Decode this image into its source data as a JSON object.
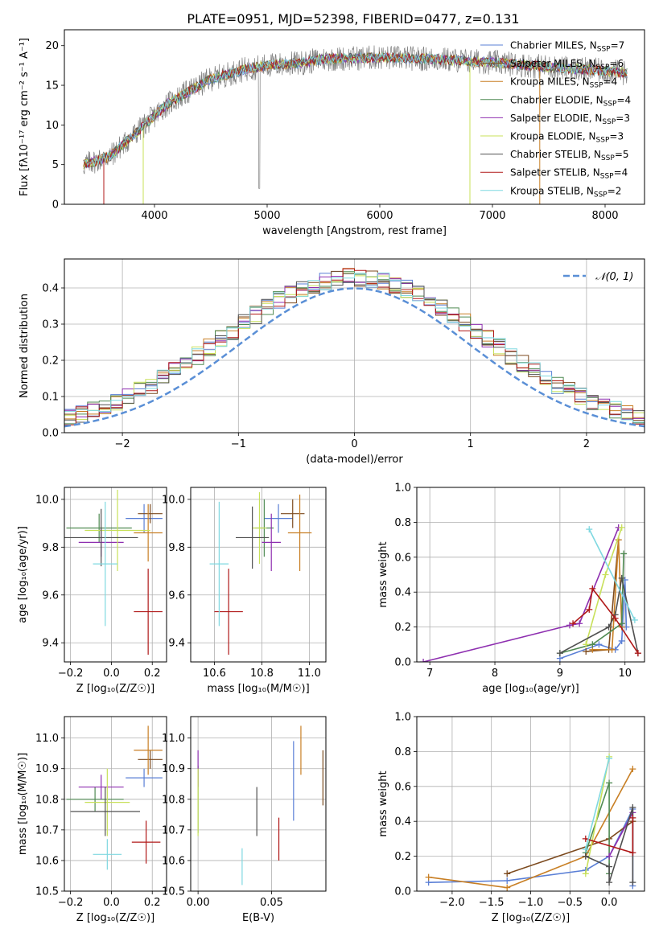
{
  "figure": {
    "title": "PLATE=0951, MJD=52398, FIBERID=0477, z=0.131"
  },
  "series_names": [
    "Chabrier MILES, N_SSP=7",
    "Salpeter MILES, N_SSP=6",
    "Kroupa MILES, N_SSP=4",
    "Chabrier ELODIE, N_SSP=4",
    "Salpeter ELODIE, N_SSP=3",
    "Kroupa ELODIE, N_SSP=3",
    "Chabrier STELIB, N_SSP=5",
    "Salpeter STELIB, N_SSP=4",
    "Kroupa STELIB, N_SSP=2"
  ],
  "colors": [
    "#5a7fd6",
    "#7c4a1e",
    "#c87f24",
    "#4f8a52",
    "#8e2fb0",
    "#c8e05a",
    "#505050",
    "#b01818",
    "#7fd8e0"
  ],
  "chart_data": [
    {
      "type": "line",
      "panel": "spectrum",
      "xlabel": "wavelength [Angstrom, rest frame]",
      "ylabel": "Flux [fλ10⁻¹⁷ erg cm⁻² s⁻¹ A⁻¹]",
      "xlim": [
        3200,
        8350
      ],
      "ylim": [
        0,
        22
      ],
      "xticks": [
        4000,
        5000,
        6000,
        7000,
        8000
      ],
      "yticks": [
        0,
        5,
        10,
        15,
        20
      ],
      "legend_position": "upper right",
      "legend_labels": [
        "Chabrier MILES, N_SSP=7",
        "Salpeter MILES, N_SSP=6",
        "Kroupa MILES, N_SSP=4",
        "Chabrier ELODIE, N_SSP=4",
        "Salpeter ELODIE, N_SSP=3",
        "Kroupa ELODIE, N_SSP=3",
        "Chabrier STELIB, N_SSP=5",
        "Salpeter STELIB, N_SSP=4",
        "Kroupa STELIB, N_SSP=2"
      ],
      "continuum_x": [
        3370,
        3600,
        3800,
        3950,
        4100,
        4300,
        4500,
        4800,
        5000,
        5300,
        5500,
        6000,
        6500,
        7000,
        7500,
        8000,
        8200
      ],
      "continuum_y": [
        5.0,
        6.0,
        8.5,
        10.5,
        12.5,
        14.2,
        15.8,
        17.0,
        17.5,
        17.8,
        18.3,
        18.5,
        18.3,
        17.9,
        17.3,
        16.8,
        16.5
      ],
      "data_x_range": [
        3370,
        8200
      ],
      "model_x_range": [
        3370,
        8200
      ]
    },
    {
      "type": "histogram",
      "panel": "residuals",
      "xlabel": "(data-model)/error",
      "ylabel": "Normed distribution",
      "xlim": [
        -2.5,
        2.5
      ],
      "ylim": [
        0,
        0.48
      ],
      "xticks": [
        -2,
        -1,
        0,
        1,
        2
      ],
      "yticks": [
        0.0,
        0.1,
        0.2,
        0.3,
        0.4
      ],
      "grid": true,
      "reference_curve": {
        "label": "𝒩(0, 1)",
        "mean": 0,
        "sigma": 1
      },
      "legend_position": "upper right",
      "bin_width": 0.1
    },
    {
      "type": "scatter",
      "panel": "age-vs-Z",
      "xlabel": "Z [log₁₀(Z/Z☉)]",
      "ylabel": "age  [log₁₀(age/yr)]",
      "xlim": [
        -0.23,
        0.27
      ],
      "ylim": [
        9.32,
        10.05
      ],
      "xticks": [
        -0.2,
        0.0,
        0.2
      ],
      "yticks": [
        9.4,
        9.6,
        9.8,
        10.0
      ],
      "grid": true,
      "points": [
        {
          "x": 0.16,
          "y": 9.92,
          "xerr": 0.09,
          "yerr": 0.06
        },
        {
          "x": 0.19,
          "y": 9.94,
          "xerr": 0.06,
          "yerr": 0.04
        },
        {
          "x": 0.18,
          "y": 9.86,
          "xerr": 0.07,
          "yerr": 0.12
        },
        {
          "x": -0.06,
          "y": 9.88,
          "xerr": 0.16,
          "yerr": 0.06
        },
        {
          "x": -0.05,
          "y": 9.82,
          "xerr": 0.11,
          "yerr": 0.06
        },
        {
          "x": 0.03,
          "y": 9.87,
          "xerr": 0.16,
          "yerr": 0.17
        },
        {
          "x": -0.05,
          "y": 9.84,
          "xerr": 0.18,
          "yerr": 0.12
        },
        {
          "x": 0.18,
          "y": 9.53,
          "xerr": 0.07,
          "yerr": 0.18
        },
        {
          "x": -0.03,
          "y": 9.73,
          "xerr": 0.06,
          "yerr": 0.26
        }
      ]
    },
    {
      "type": "scatter",
      "panel": "age-vs-mass",
      "xlabel": "mass [log₁₀(M/M☉)]",
      "ylabel": "",
      "xlim": [
        10.5,
        11.07
      ],
      "ylim": [
        9.32,
        10.05
      ],
      "xticks": [
        10.6,
        10.8,
        11.0
      ],
      "yticks": [
        9.4,
        9.6,
        9.8,
        10.0
      ],
      "grid": true,
      "points": [
        {
          "x": 10.87,
          "y": 9.92,
          "xerr": 0.06,
          "yerr": 0.06
        },
        {
          "x": 10.93,
          "y": 9.94,
          "xerr": 0.05,
          "yerr": 0.06
        },
        {
          "x": 10.96,
          "y": 9.86,
          "xerr": 0.05,
          "yerr": 0.16
        },
        {
          "x": 10.81,
          "y": 9.88,
          "xerr": 0.04,
          "yerr": 0.12
        },
        {
          "x": 10.84,
          "y": 9.82,
          "xerr": 0.04,
          "yerr": 0.12
        },
        {
          "x": 10.79,
          "y": 9.88,
          "xerr": 0.03,
          "yerr": 0.15
        },
        {
          "x": 10.76,
          "y": 9.84,
          "xerr": 0.07,
          "yerr": 0.13
        },
        {
          "x": 10.66,
          "y": 9.53,
          "xerr": 0.06,
          "yerr": 0.18
        },
        {
          "x": 10.62,
          "y": 9.73,
          "xerr": 0.04,
          "yerr": 0.26
        }
      ]
    },
    {
      "type": "line",
      "panel": "mass-weight-vs-age",
      "xlabel": "age  [log₁₀(age/yr)]",
      "ylabel": "mass weight",
      "xlim": [
        6.8,
        10.3
      ],
      "ylim": [
        0,
        1
      ],
      "xticks": [
        7,
        8,
        9,
        10
      ],
      "yticks": [
        0.0,
        0.2,
        0.4,
        0.6,
        0.8,
        1.0
      ],
      "grid": true,
      "series": [
        {
          "x": [
            9.0,
            9.6,
            9.85,
            9.95,
            10.0,
            10.02
          ],
          "y": [
            0.02,
            0.1,
            0.07,
            0.12,
            0.47,
            0.2
          ]
        },
        {
          "x": [
            9.4,
            9.75,
            9.9
          ],
          "y": [
            0.06,
            0.07,
            0.7
          ]
        },
        {
          "x": [
            9.5,
            9.8,
            9.9,
            9.95
          ],
          "y": [
            0.07,
            0.07,
            0.7,
            0.2
          ]
        },
        {
          "x": [
            9.0,
            9.5,
            9.95,
            9.98
          ],
          "y": [
            0.05,
            0.1,
            0.22,
            0.62
          ]
        },
        {
          "x": [
            6.9,
            9.15,
            9.3,
            9.9
          ],
          "y": [
            0.0,
            0.21,
            0.22,
            0.77
          ]
        },
        {
          "x": [
            9.4,
            9.7,
            9.95
          ],
          "y": [
            0.1,
            0.5,
            0.77
          ]
        },
        {
          "x": [
            9.0,
            9.75,
            9.85,
            9.95,
            10.2
          ],
          "y": [
            0.05,
            0.2,
            0.27,
            0.48,
            0.05
          ]
        },
        {
          "x": [
            9.2,
            9.45,
            9.5,
            9.85,
            10.2
          ],
          "y": [
            0.22,
            0.3,
            0.42,
            0.25,
            0.05
          ]
        },
        {
          "x": [
            9.45,
            10.15
          ],
          "y": [
            0.76,
            0.24
          ]
        }
      ]
    },
    {
      "type": "scatter",
      "panel": "mass-vs-Z",
      "xlabel": "Z [log₁₀(Z/Z☉)]",
      "ylabel": "mass [log₁₀(M/M☉)]",
      "xlim": [
        -0.23,
        0.27
      ],
      "ylim": [
        10.5,
        11.07
      ],
      "xticks": [
        -0.2,
        0.0,
        0.2
      ],
      "yticks": [
        10.5,
        10.6,
        10.7,
        10.8,
        10.9,
        11.0
      ],
      "grid": true,
      "points": [
        {
          "x": 0.16,
          "y": 10.87,
          "xerr": 0.09,
          "yerr": 0.03
        },
        {
          "x": 0.19,
          "y": 10.93,
          "xerr": 0.06,
          "yerr": 0.03
        },
        {
          "x": 0.18,
          "y": 10.96,
          "xerr": 0.07,
          "yerr": 0.08
        },
        {
          "x": -0.08,
          "y": 10.8,
          "xerr": 0.14,
          "yerr": 0.04
        },
        {
          "x": -0.05,
          "y": 10.84,
          "xerr": 0.11,
          "yerr": 0.04
        },
        {
          "x": -0.02,
          "y": 10.79,
          "xerr": 0.11,
          "yerr": 0.11
        },
        {
          "x": -0.03,
          "y": 10.76,
          "xerr": 0.17,
          "yerr": 0.08
        },
        {
          "x": 0.17,
          "y": 10.66,
          "xerr": 0.07,
          "yerr": 0.07
        },
        {
          "x": -0.02,
          "y": 10.62,
          "xerr": 0.07,
          "yerr": 0.05
        }
      ]
    },
    {
      "type": "scatter",
      "panel": "mass-vs-EBV",
      "xlabel": "E(B-V)",
      "ylabel": "",
      "xlim": [
        -0.005,
        0.087
      ],
      "ylim": [
        10.5,
        11.07
      ],
      "xticks": [
        0.0,
        0.05
      ],
      "yticks": [
        10.5,
        10.6,
        10.7,
        10.8,
        10.9,
        11.0
      ],
      "grid": true,
      "points": [
        {
          "x": 0.065,
          "y": 10.86,
          "yerr": 0.13
        },
        {
          "x": 0.085,
          "y": 10.87,
          "yerr": 0.09
        },
        {
          "x": 0.07,
          "y": 10.96,
          "yerr": 0.08
        },
        {
          "x": 0.0,
          "y": 10.8,
          "yerr": 0.11
        },
        {
          "x": 0.0,
          "y": 10.9,
          "yerr": 0.06
        },
        {
          "x": 0.0,
          "y": 10.79,
          "yerr": 0.11
        },
        {
          "x": 0.04,
          "y": 10.76,
          "yerr": 0.08
        },
        {
          "x": 0.055,
          "y": 10.67,
          "yerr": 0.07
        },
        {
          "x": 0.03,
          "y": 10.58,
          "yerr": 0.06
        }
      ]
    },
    {
      "type": "line",
      "panel": "mass-weight-vs-Z",
      "xlabel": "Z [log₁₀(Z/Z☉)]",
      "ylabel": "mass weight",
      "xlim": [
        -2.45,
        0.45
      ],
      "ylim": [
        0,
        1
      ],
      "xticks": [
        -2.0,
        -1.5,
        -1.0,
        -0.5,
        0.0
      ],
      "yticks": [
        0.0,
        0.2,
        0.4,
        0.6,
        0.8,
        1.0
      ],
      "grid": true,
      "series": [
        {
          "x": [
            -2.3,
            -1.3,
            -0.3,
            0.0,
            0.3,
            0.3
          ],
          "y": [
            0.05,
            0.06,
            0.12,
            0.2,
            0.47,
            0.03
          ]
        },
        {
          "x": [
            -1.3,
            0.0,
            0.3
          ],
          "y": [
            0.1,
            0.3,
            0.4
          ]
        },
        {
          "x": [
            -2.3,
            -1.3,
            -0.3,
            0.3
          ],
          "y": [
            0.08,
            0.02,
            0.2,
            0.7
          ]
        },
        {
          "x": [
            -0.3,
            0.0,
            0.0
          ],
          "y": [
            0.22,
            0.62,
            0.1
          ]
        },
        {
          "x": [
            0.0,
            0.3
          ],
          "y": [
            0.2,
            0.45
          ]
        },
        {
          "x": [
            -0.3,
            0.0
          ],
          "y": [
            0.1,
            0.77
          ]
        },
        {
          "x": [
            -0.3,
            0.0,
            0.0,
            0.3,
            0.3
          ],
          "y": [
            0.2,
            0.14,
            0.05,
            0.48,
            0.05
          ]
        },
        {
          "x": [
            -0.3,
            0.3,
            0.3
          ],
          "y": [
            0.3,
            0.22,
            0.42
          ]
        },
        {
          "x": [
            -0.3,
            0.0
          ],
          "y": [
            0.24,
            0.76
          ]
        }
      ]
    }
  ]
}
